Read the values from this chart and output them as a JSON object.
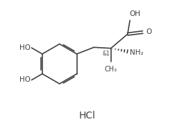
{
  "bg_color": "#ffffff",
  "line_color": "#404040",
  "text_color": "#404040",
  "hcl_label": "HCl",
  "hcl_fontsize": 10,
  "stereo_label": "&1",
  "nh2_label": "NH₂",
  "figsize": [
    2.78,
    1.79
  ],
  "dpi": 100,
  "lw": 1.2
}
